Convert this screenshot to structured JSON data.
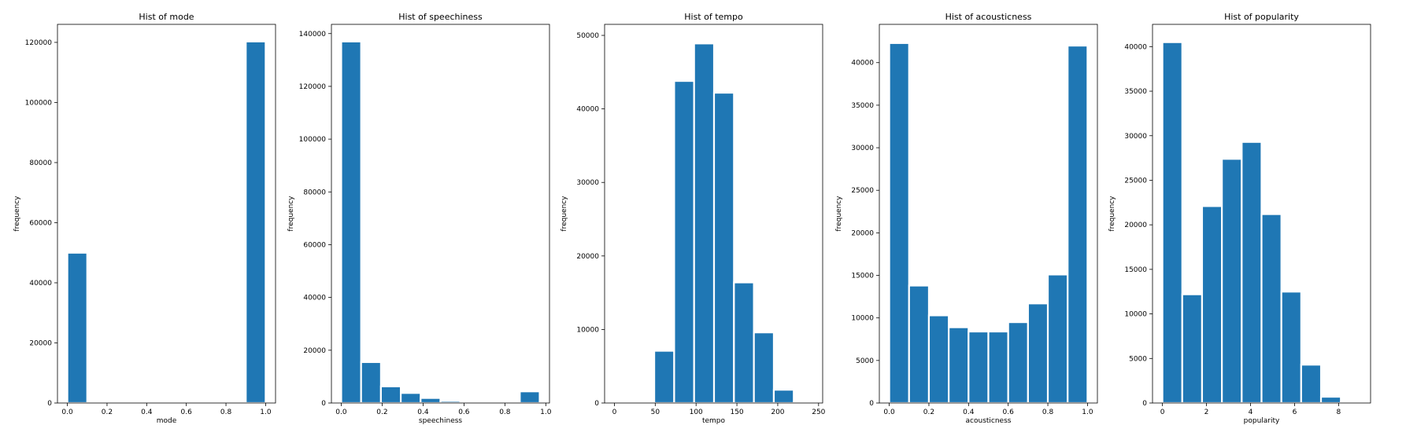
{
  "chart_data": [
    {
      "type": "bar",
      "title": "Hist of mode",
      "xlabel": "mode",
      "ylabel": "frequency",
      "xlim": [
        -0.05,
        1.05
      ],
      "ylim": [
        0,
        126000
      ],
      "xticks": [
        0.0,
        0.2,
        0.4,
        0.6,
        0.8,
        1.0
      ],
      "xtick_labels": [
        "0.0",
        "0.2",
        "0.4",
        "0.6",
        "0.8",
        "1.0"
      ],
      "yticks": [
        0,
        20000,
        40000,
        60000,
        80000,
        100000,
        120000
      ],
      "ytick_labels": [
        "0",
        "20000",
        "40000",
        "60000",
        "80000",
        "100000",
        "120000"
      ],
      "bin_edges": [
        0.0,
        0.1,
        0.2,
        0.3,
        0.4,
        0.5,
        0.6,
        0.7,
        0.8,
        0.9,
        1.0
      ],
      "values": [
        50000,
        0,
        0,
        0,
        0,
        0,
        0,
        0,
        0,
        120300
      ],
      "color": "#1f77b4",
      "grid": false
    },
    {
      "type": "bar",
      "title": "Hist of speechiness",
      "xlabel": "speechiness",
      "ylabel": "frequency",
      "xlim": [
        -0.048,
        1.018
      ],
      "ylim": [
        0,
        143500
      ],
      "xticks": [
        0.0,
        0.2,
        0.4,
        0.6,
        0.8,
        1.0
      ],
      "xtick_labels": [
        "0.0",
        "0.2",
        "0.4",
        "0.6",
        "0.8",
        "1.0"
      ],
      "yticks": [
        0,
        20000,
        40000,
        60000,
        80000,
        100000,
        120000,
        140000
      ],
      "ytick_labels": [
        "0",
        "20000",
        "40000",
        "60000",
        "80000",
        "100000",
        "120000",
        "140000"
      ],
      "bin_edges": [
        0.0,
        0.097,
        0.194,
        0.291,
        0.388,
        0.485,
        0.582,
        0.679,
        0.776,
        0.873,
        0.97
      ],
      "values": [
        137000,
        15500,
        6300,
        3800,
        1900,
        800,
        300,
        300,
        600,
        4400
      ],
      "color": "#1f77b4",
      "grid": false
    },
    {
      "type": "bar",
      "title": "Hist of tempo",
      "xlabel": "tempo",
      "ylabel": "frequency",
      "xlim": [
        -12,
        255
      ],
      "ylim": [
        0,
        51500
      ],
      "xticks": [
        0,
        50,
        100,
        150,
        200,
        250
      ],
      "xtick_labels": [
        "0",
        "50",
        "100",
        "150",
        "200",
        "250"
      ],
      "yticks": [
        0,
        10000,
        20000,
        30000,
        40000,
        50000
      ],
      "ytick_labels": [
        "0",
        "10000",
        "20000",
        "30000",
        "40000",
        "50000"
      ],
      "bin_edges": [
        0,
        24.4,
        48.8,
        73.2,
        97.6,
        122,
        146.4,
        170.8,
        195.2,
        219.6,
        244
      ],
      "values": [
        150,
        150,
        7100,
        43800,
        48900,
        42200,
        16400,
        9600,
        1800,
        0
      ],
      "color": "#1f77b4",
      "grid": false
    },
    {
      "type": "bar",
      "title": "Hist of acousticness",
      "xlabel": "acousticness",
      "ylabel": "frequency",
      "xlim": [
        -0.05,
        1.05
      ],
      "ylim": [
        0,
        44500
      ],
      "xticks": [
        0.0,
        0.2,
        0.4,
        0.6,
        0.8,
        1.0
      ],
      "xtick_labels": [
        "0.0",
        "0.2",
        "0.4",
        "0.6",
        "0.8",
        "1.0"
      ],
      "yticks": [
        0,
        5000,
        10000,
        15000,
        20000,
        25000,
        30000,
        35000,
        40000
      ],
      "ytick_labels": [
        "0",
        "5000",
        "10000",
        "15000",
        "20000",
        "25000",
        "30000",
        "35000",
        "40000"
      ],
      "bin_edges": [
        0.0,
        0.1,
        0.2,
        0.3,
        0.4,
        0.5,
        0.6,
        0.7,
        0.8,
        0.9,
        1.0
      ],
      "values": [
        42300,
        13800,
        10300,
        8900,
        8400,
        8400,
        9500,
        11700,
        15100,
        42000
      ],
      "color": "#1f77b4",
      "grid": false
    },
    {
      "type": "bar",
      "title": "Hist of popularity",
      "xlabel": "popularity",
      "ylabel": "frequency",
      "xlim": [
        -0.45,
        9.45
      ],
      "ylim": [
        0,
        42500
      ],
      "xticks": [
        0,
        2,
        4,
        6,
        8
      ],
      "xtick_labels": [
        "0",
        "2",
        "4",
        "6",
        "8"
      ],
      "yticks": [
        0,
        5000,
        10000,
        15000,
        20000,
        25000,
        30000,
        35000,
        40000
      ],
      "ytick_labels": [
        "0",
        "5000",
        "10000",
        "15000",
        "20000",
        "25000",
        "30000",
        "35000",
        "40000"
      ],
      "bin_edges": [
        0,
        0.9,
        1.8,
        2.7,
        3.6,
        4.5,
        5.4,
        6.3,
        7.2,
        8.1,
        9.0
      ],
      "values": [
        40500,
        12200,
        22100,
        27400,
        29300,
        21200,
        12500,
        4300,
        700,
        100
      ],
      "color": "#1f77b4",
      "grid": false
    }
  ]
}
